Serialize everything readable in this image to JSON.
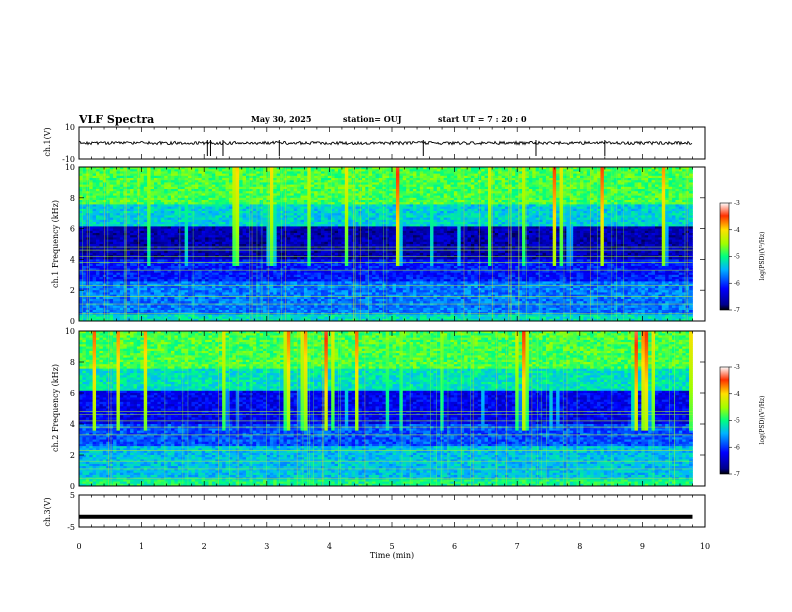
{
  "header": {
    "title": "VLF Spectra",
    "date": "May 30, 2025",
    "station": "station= OUJ",
    "start": "start  UT =  7 : 20 : 0"
  },
  "chart_data": [
    {
      "type": "line",
      "name": "ch.1 waveform",
      "ylabel": "ch.1(V)",
      "ylim": [
        -10,
        10
      ],
      "yticks": [
        "10",
        "-10"
      ],
      "baseline": 0,
      "spikes_at_min": [
        2.05,
        2.1,
        2.3,
        3.2,
        5.5,
        7.3,
        8.4
      ]
    },
    {
      "type": "heatmap",
      "name": "ch.1 spectrogram",
      "ylabel": "ch.1 Frequency (kHz)",
      "ylim": [
        0,
        10
      ],
      "yticks": [
        "0",
        "2",
        "4",
        "6",
        "8",
        "10"
      ],
      "xlim": [
        0,
        10
      ],
      "data_until_min": 9.8,
      "colorbar": {
        "label": "log(PSD)(V²/Hz)",
        "range": [
          -7,
          -3
        ],
        "ticks": [
          "-3",
          "-4",
          "-5",
          "-6",
          "-7"
        ]
      }
    },
    {
      "type": "heatmap",
      "name": "ch.2 spectrogram",
      "ylabel": "ch.2 Frequency (kHz)",
      "ylim": [
        0,
        10
      ],
      "yticks": [
        "0",
        "2",
        "4",
        "6",
        "8",
        "10"
      ],
      "xlim": [
        0,
        10
      ],
      "data_until_min": 9.8,
      "colorbar": {
        "label": "log(PSD)(V²/Hz)",
        "range": [
          -7,
          -3
        ],
        "ticks": [
          "-3",
          "-4",
          "-5",
          "-6",
          "-7"
        ]
      }
    },
    {
      "type": "line",
      "name": "ch.3 waveform",
      "ylabel": "ch.3(V)",
      "ylim": [
        -5,
        5
      ],
      "yticks": [
        "5",
        "-5"
      ],
      "value": -1.8
    }
  ],
  "xaxis": {
    "label": "Time  (min)",
    "ticks": [
      "0",
      "1",
      "2",
      "3",
      "4",
      "5",
      "6",
      "7",
      "8",
      "9",
      "10"
    ]
  }
}
